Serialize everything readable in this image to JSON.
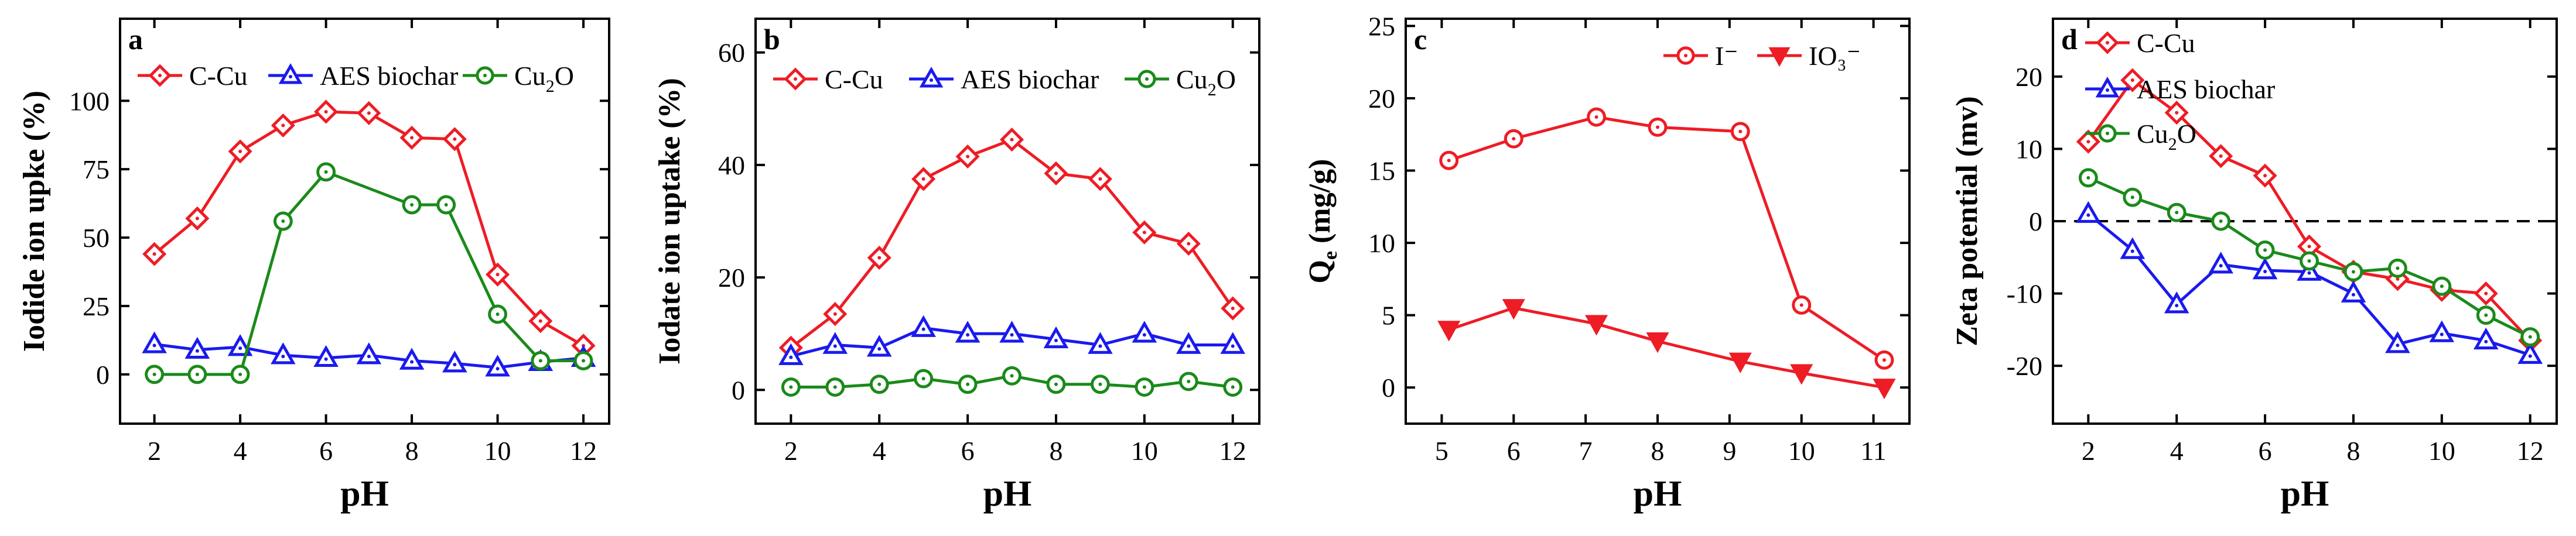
{
  "chart_data": [
    {
      "panel": "a",
      "type": "line",
      "xlabel": "pH",
      "ylabel": "Iodide ion upke (%)",
      "xlim": [
        1.2,
        12.6
      ],
      "ylim": [
        -18,
        130
      ],
      "xticks": [
        2,
        4,
        6,
        8,
        10,
        12
      ],
      "yticks": [
        0,
        25,
        50,
        75,
        100
      ],
      "legend_position": "top",
      "series": [
        {
          "name": "C-Cu",
          "color": "#ee1c25",
          "marker": "diamond",
          "x": [
            2,
            3,
            4,
            5,
            6,
            7,
            8,
            9,
            10,
            11,
            12
          ],
          "y": [
            44,
            57,
            81.5,
            91,
            96,
            95.5,
            86.5,
            86,
            36.5,
            19.5,
            10.5
          ]
        },
        {
          "name": "AES biochar",
          "color": "#1a1aee",
          "marker": "triangle",
          "x": [
            2,
            3,
            4,
            5,
            6,
            7,
            8,
            9,
            10,
            11,
            12
          ],
          "y": [
            11,
            9,
            10,
            7,
            6,
            7,
            5,
            4,
            2.5,
            4.5,
            6
          ]
        },
        {
          "name": "Cu2O",
          "color": "#1a8a1a",
          "marker": "circle",
          "x": [
            2,
            3,
            4,
            5,
            6,
            8,
            8.8,
            10,
            11,
            12
          ],
          "y": [
            0,
            0,
            0,
            56,
            74,
            62,
            62,
            22,
            5,
            5
          ]
        }
      ]
    },
    {
      "panel": "b",
      "type": "line",
      "xlabel": "pH",
      "ylabel": "Iodate ion uptake (%)",
      "xlim": [
        1.2,
        12.6
      ],
      "ylim": [
        -6,
        66
      ],
      "xticks": [
        2,
        4,
        6,
        8,
        10,
        12
      ],
      "yticks": [
        0,
        20,
        40,
        60
      ],
      "legend_position": "top",
      "series": [
        {
          "name": "C-Cu",
          "color": "#ee1c25",
          "marker": "diamond",
          "x": [
            2,
            3,
            4,
            5,
            6,
            7,
            8,
            9,
            10,
            11,
            12
          ],
          "y": [
            7.5,
            13.5,
            23.5,
            37.5,
            41.5,
            44.5,
            38.5,
            37.5,
            28,
            26,
            14.5
          ]
        },
        {
          "name": "AES biochar",
          "color": "#1a1aee",
          "marker": "triangle",
          "x": [
            2,
            3,
            4,
            5,
            6,
            7,
            8,
            9,
            10,
            11,
            12
          ],
          "y": [
            6,
            8,
            7.5,
            11,
            10,
            10,
            9,
            8,
            10,
            8,
            8
          ]
        },
        {
          "name": "Cu2O",
          "color": "#1a8a1a",
          "marker": "circle",
          "x": [
            2,
            3,
            4,
            5,
            6,
            7,
            8,
            9,
            10,
            11,
            12
          ],
          "y": [
            0.5,
            0.5,
            1,
            2,
            1,
            2.5,
            1,
            1,
            0.5,
            1.5,
            0.5
          ]
        }
      ]
    },
    {
      "panel": "c",
      "type": "line",
      "xlabel": "pH",
      "ylabel": "Qe (mg/g)",
      "xlim": [
        4.5,
        11.5
      ],
      "ylim": [
        -2.5,
        25.5
      ],
      "xticks": [
        5,
        6,
        7,
        8,
        9,
        10,
        11
      ],
      "yticks": [
        0,
        5,
        10,
        15,
        20,
        25
      ],
      "legend_position": "top-right",
      "series": [
        {
          "name": "I⁻",
          "color": "#ee1c25",
          "marker": "circle",
          "x": [
            5.1,
            6,
            7.15,
            8,
            9.15,
            10,
            11.15
          ],
          "y": [
            15.7,
            17.2,
            18.7,
            18,
            17.7,
            5.7,
            1.9
          ]
        },
        {
          "name": "IO₃⁻",
          "color": "#ee1c25",
          "marker": "triangle-down",
          "x": [
            5.1,
            6,
            7.15,
            8,
            9.15,
            10,
            11.15
          ],
          "y": [
            4,
            5.5,
            4.4,
            3.2,
            1.8,
            1,
            0
          ]
        }
      ]
    },
    {
      "panel": "d",
      "type": "line",
      "xlabel": "pH",
      "ylabel": "Zeta potential (mv)",
      "xlim": [
        1.2,
        12.6
      ],
      "ylim": [
        -28,
        28
      ],
      "xticks": [
        2,
        4,
        6,
        8,
        10,
        12
      ],
      "yticks": [
        -20,
        -10,
        0,
        10,
        20
      ],
      "legend_position": "top-right",
      "zero_line": true,
      "series": [
        {
          "name": "C-Cu",
          "color": "#ee1c25",
          "marker": "diamond",
          "x": [
            2,
            3,
            4,
            5,
            6,
            7,
            8,
            9,
            10,
            11,
            12
          ],
          "y": [
            11,
            19.5,
            15,
            9,
            6.3,
            -3.5,
            -7,
            -8,
            -9.5,
            -10,
            -16.5
          ]
        },
        {
          "name": "AES biochar",
          "color": "#1a1aee",
          "marker": "triangle",
          "x": [
            2,
            3,
            4,
            5,
            6,
            7,
            8,
            9,
            10,
            11,
            12
          ],
          "y": [
            1,
            -4,
            -11.5,
            -6,
            -6.8,
            -7,
            -10,
            -17,
            -15.5,
            -16.5,
            -18.5
          ]
        },
        {
          "name": "Cu2O",
          "color": "#1a8a1a",
          "marker": "circle",
          "x": [
            2,
            3,
            4,
            5,
            6,
            7,
            8,
            9,
            10,
            11,
            12
          ],
          "y": [
            6,
            3.3,
            1.2,
            0,
            -4,
            -5.5,
            -7,
            -6.5,
            -9,
            -13,
            -16
          ]
        }
      ]
    }
  ]
}
